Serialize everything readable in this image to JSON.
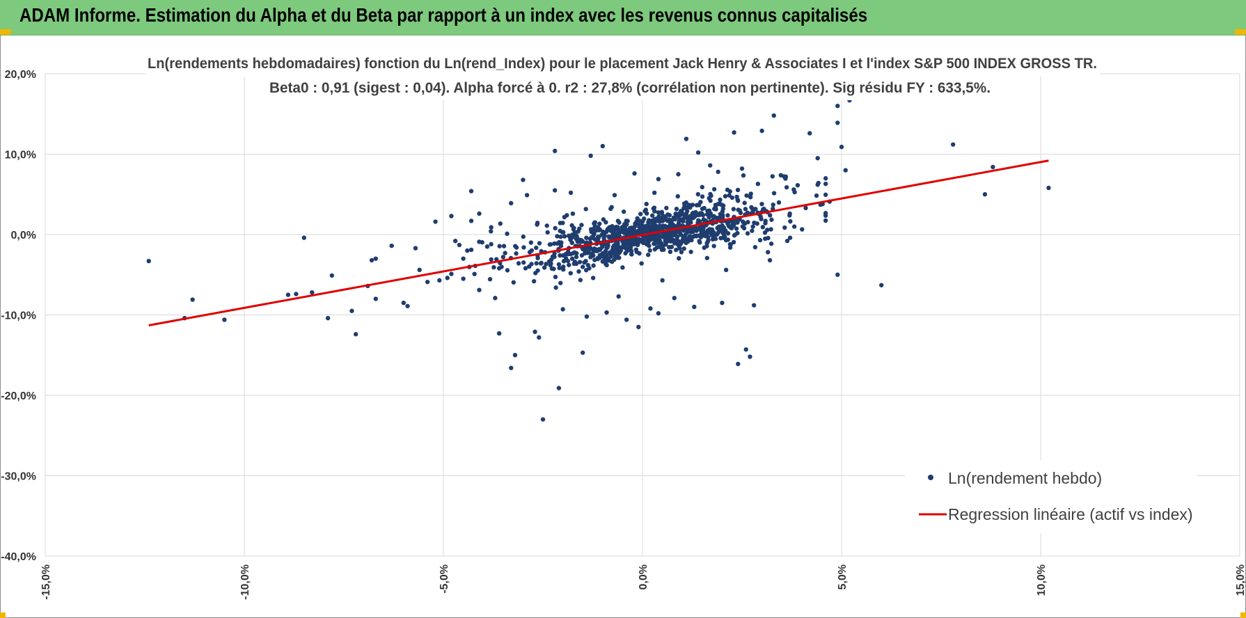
{
  "banner": {
    "title": "ADAM Informe. Estimation du Alpha et du Beta par rapport à un index avec les revenus connus capitalisés"
  },
  "colors": {
    "banner": "#7dc97d",
    "corner_marks": "#f2b600",
    "points": "#1f3d6e",
    "regression_line": "#e00000",
    "gridlines": "#d9d9d9"
  },
  "chart_data": {
    "type": "scatter",
    "title": "Ln(rendements hebdomadaires) fonction du Ln(rend_Index) pour le placement Jack Henry & Associates I et l'index S&P 500 INDEX GROSS TR.",
    "subtitle": "Beta0 : 0,91 (sigest : 0,04).  Alpha forcé à 0. r2 : 27,8% (corrélation non pertinente). Sig résidu FY : 633,5%.",
    "xlim": [
      -15,
      15
    ],
    "ylim": [
      -40,
      20
    ],
    "x_ticks": [
      "-15,0%",
      "-10,0%",
      "-5,0%",
      "0,0%",
      "5,0%",
      "10,0%",
      "15,0%"
    ],
    "y_ticks": [
      "20,0%",
      "10,0%",
      "0,0%",
      "-10,0%",
      "-20,0%",
      "-30,0%",
      "-40,0%"
    ],
    "grid": true,
    "legend_position": "bottom-right",
    "series": [
      {
        "name": "Ln(rendement hebdo)",
        "kind": "scatter",
        "points": [
          [
            -12.4,
            -3.3
          ],
          [
            -11.5,
            -10.4
          ],
          [
            -11.3,
            -8.1
          ],
          [
            -10.5,
            -10.6
          ],
          [
            -8.5,
            -0.4
          ],
          [
            -8.9,
            -7.5
          ],
          [
            -8.7,
            -7.4
          ],
          [
            -8.3,
            -7.2
          ],
          [
            -7.8,
            -5.1
          ],
          [
            -7.9,
            -10.4
          ],
          [
            -7.3,
            -9.5
          ],
          [
            -7.2,
            -12.4
          ],
          [
            -6.9,
            -6.4
          ],
          [
            -6.7,
            -3.0
          ],
          [
            -6.8,
            -3.2
          ],
          [
            -6.7,
            -8.0
          ],
          [
            -6.3,
            -1.4
          ],
          [
            -6.0,
            -8.5
          ],
          [
            -5.9,
            -8.9
          ],
          [
            -5.7,
            -1.7
          ],
          [
            -5.6,
            -4.4
          ],
          [
            -5.4,
            -5.9
          ],
          [
            -5.2,
            1.6
          ],
          [
            -5.1,
            -5.7
          ],
          [
            -4.9,
            -5.4
          ],
          [
            -4.8,
            2.3
          ],
          [
            -4.8,
            -4.9
          ],
          [
            -4.7,
            -0.8
          ],
          [
            -4.6,
            -1.3
          ],
          [
            -4.5,
            -3.0
          ],
          [
            -4.5,
            -5.5
          ],
          [
            -4.4,
            -2.0
          ],
          [
            -4.3,
            -1.9
          ],
          [
            -4.2,
            -3.9
          ],
          [
            -4.1,
            -0.9
          ],
          [
            -4.1,
            -6.9
          ],
          [
            -3.9,
            -1.5
          ],
          [
            -3.8,
            0.9
          ],
          [
            -3.8,
            -3.1
          ],
          [
            -3.7,
            -7.9
          ],
          [
            -3.6,
            -4.2
          ],
          [
            -3.5,
            -2.8
          ],
          [
            -4.3,
            1.7
          ],
          [
            -4.3,
            5.4
          ],
          [
            -4.1,
            2.6
          ],
          [
            -3.6,
            -12.3
          ],
          [
            -3.4,
            0.1
          ],
          [
            -3.3,
            -16.6
          ],
          [
            -3.3,
            3.9
          ],
          [
            -3.2,
            -15.0
          ],
          [
            -3.0,
            6.8
          ],
          [
            -2.9,
            4.9
          ],
          [
            -2.7,
            -12.1
          ],
          [
            -2.6,
            -12.8
          ],
          [
            -2.5,
            -23.0
          ],
          [
            -2.3,
            -3.6
          ],
          [
            -2.2,
            10.4
          ],
          [
            -2.0,
            -9.3
          ],
          [
            -2.2,
            5.5
          ],
          [
            -2.1,
            -19.1
          ],
          [
            -1.9,
            2.4
          ],
          [
            -1.8,
            5.2
          ],
          [
            -1.7,
            0.3
          ],
          [
            -1.5,
            -14.7
          ],
          [
            -1.4,
            -10.2
          ],
          [
            -1.3,
            9.8
          ],
          [
            -1.0,
            11.0
          ],
          [
            -0.9,
            -9.7
          ],
          [
            -0.8,
            3.2
          ],
          [
            -0.6,
            -7.7
          ],
          [
            -0.4,
            -10.6
          ],
          [
            -0.1,
            -11.5
          ],
          [
            0.2,
            -9.2
          ],
          [
            0.4,
            -9.8
          ],
          [
            0.4,
            6.9
          ],
          [
            0.6,
            3.3
          ],
          [
            0.8,
            -7.9
          ],
          [
            0.9,
            7.5
          ],
          [
            1.1,
            11.9
          ],
          [
            1.3,
            -9.0
          ],
          [
            1.4,
            10.2
          ],
          [
            1.7,
            8.6
          ],
          [
            2.0,
            -8.5
          ],
          [
            2.3,
            12.7
          ],
          [
            2.4,
            -16.1
          ],
          [
            2.6,
            -14.3
          ],
          [
            2.7,
            -15.2
          ],
          [
            2.8,
            -8.8
          ],
          [
            3.0,
            12.9
          ],
          [
            3.3,
            14.8
          ],
          [
            4.2,
            12.6
          ],
          [
            4.4,
            9.5
          ],
          [
            4.9,
            16.0
          ],
          [
            4.9,
            13.9
          ],
          [
            5.2,
            16.7
          ],
          [
            5.0,
            10.9
          ],
          [
            5.1,
            8.0
          ],
          [
            4.7,
            4.1
          ],
          [
            4.9,
            -5.0
          ],
          [
            6.0,
            -6.3
          ],
          [
            7.8,
            11.2
          ],
          [
            8.6,
            5.0
          ],
          [
            8.8,
            8.4
          ],
          [
            10.2,
            5.8
          ],
          [
            -0.2,
            7.6
          ],
          [
            0.3,
            5.2
          ],
          [
            -0.7,
            4.9
          ],
          [
            1.9,
            7.8
          ],
          [
            2.5,
            8.2
          ],
          [
            3.6,
            7.2
          ],
          [
            3.8,
            5.6
          ],
          [
            4.4,
            6.2
          ],
          [
            4.1,
            3.3
          ],
          [
            -3.8,
            -1.2
          ],
          [
            -2.8,
            -1.0
          ],
          [
            -2.4,
            1.1
          ],
          [
            -1.6,
            -4.6
          ],
          [
            -1.2,
            1.5
          ],
          [
            -0.5,
            -4.1
          ],
          [
            0.1,
            3.8
          ],
          [
            0.5,
            -5.7
          ],
          [
            1.5,
            5.9
          ],
          [
            2.1,
            -4.4
          ],
          [
            2.9,
            6.3
          ],
          [
            3.2,
            -3.2
          ],
          [
            3.7,
            2.6
          ]
        ],
        "dense_cluster": {
          "count": 1050,
          "x_mean": 0.3,
          "x_std": 1.6,
          "beta": 0.91,
          "resid_std": 2.4,
          "seed": 20240611
        }
      },
      {
        "name": "Regression linéaire (actif vs index)",
        "kind": "line",
        "x": [
          -12.4,
          10.2
        ],
        "y": [
          -11.3,
          9.2
        ]
      }
    ]
  }
}
